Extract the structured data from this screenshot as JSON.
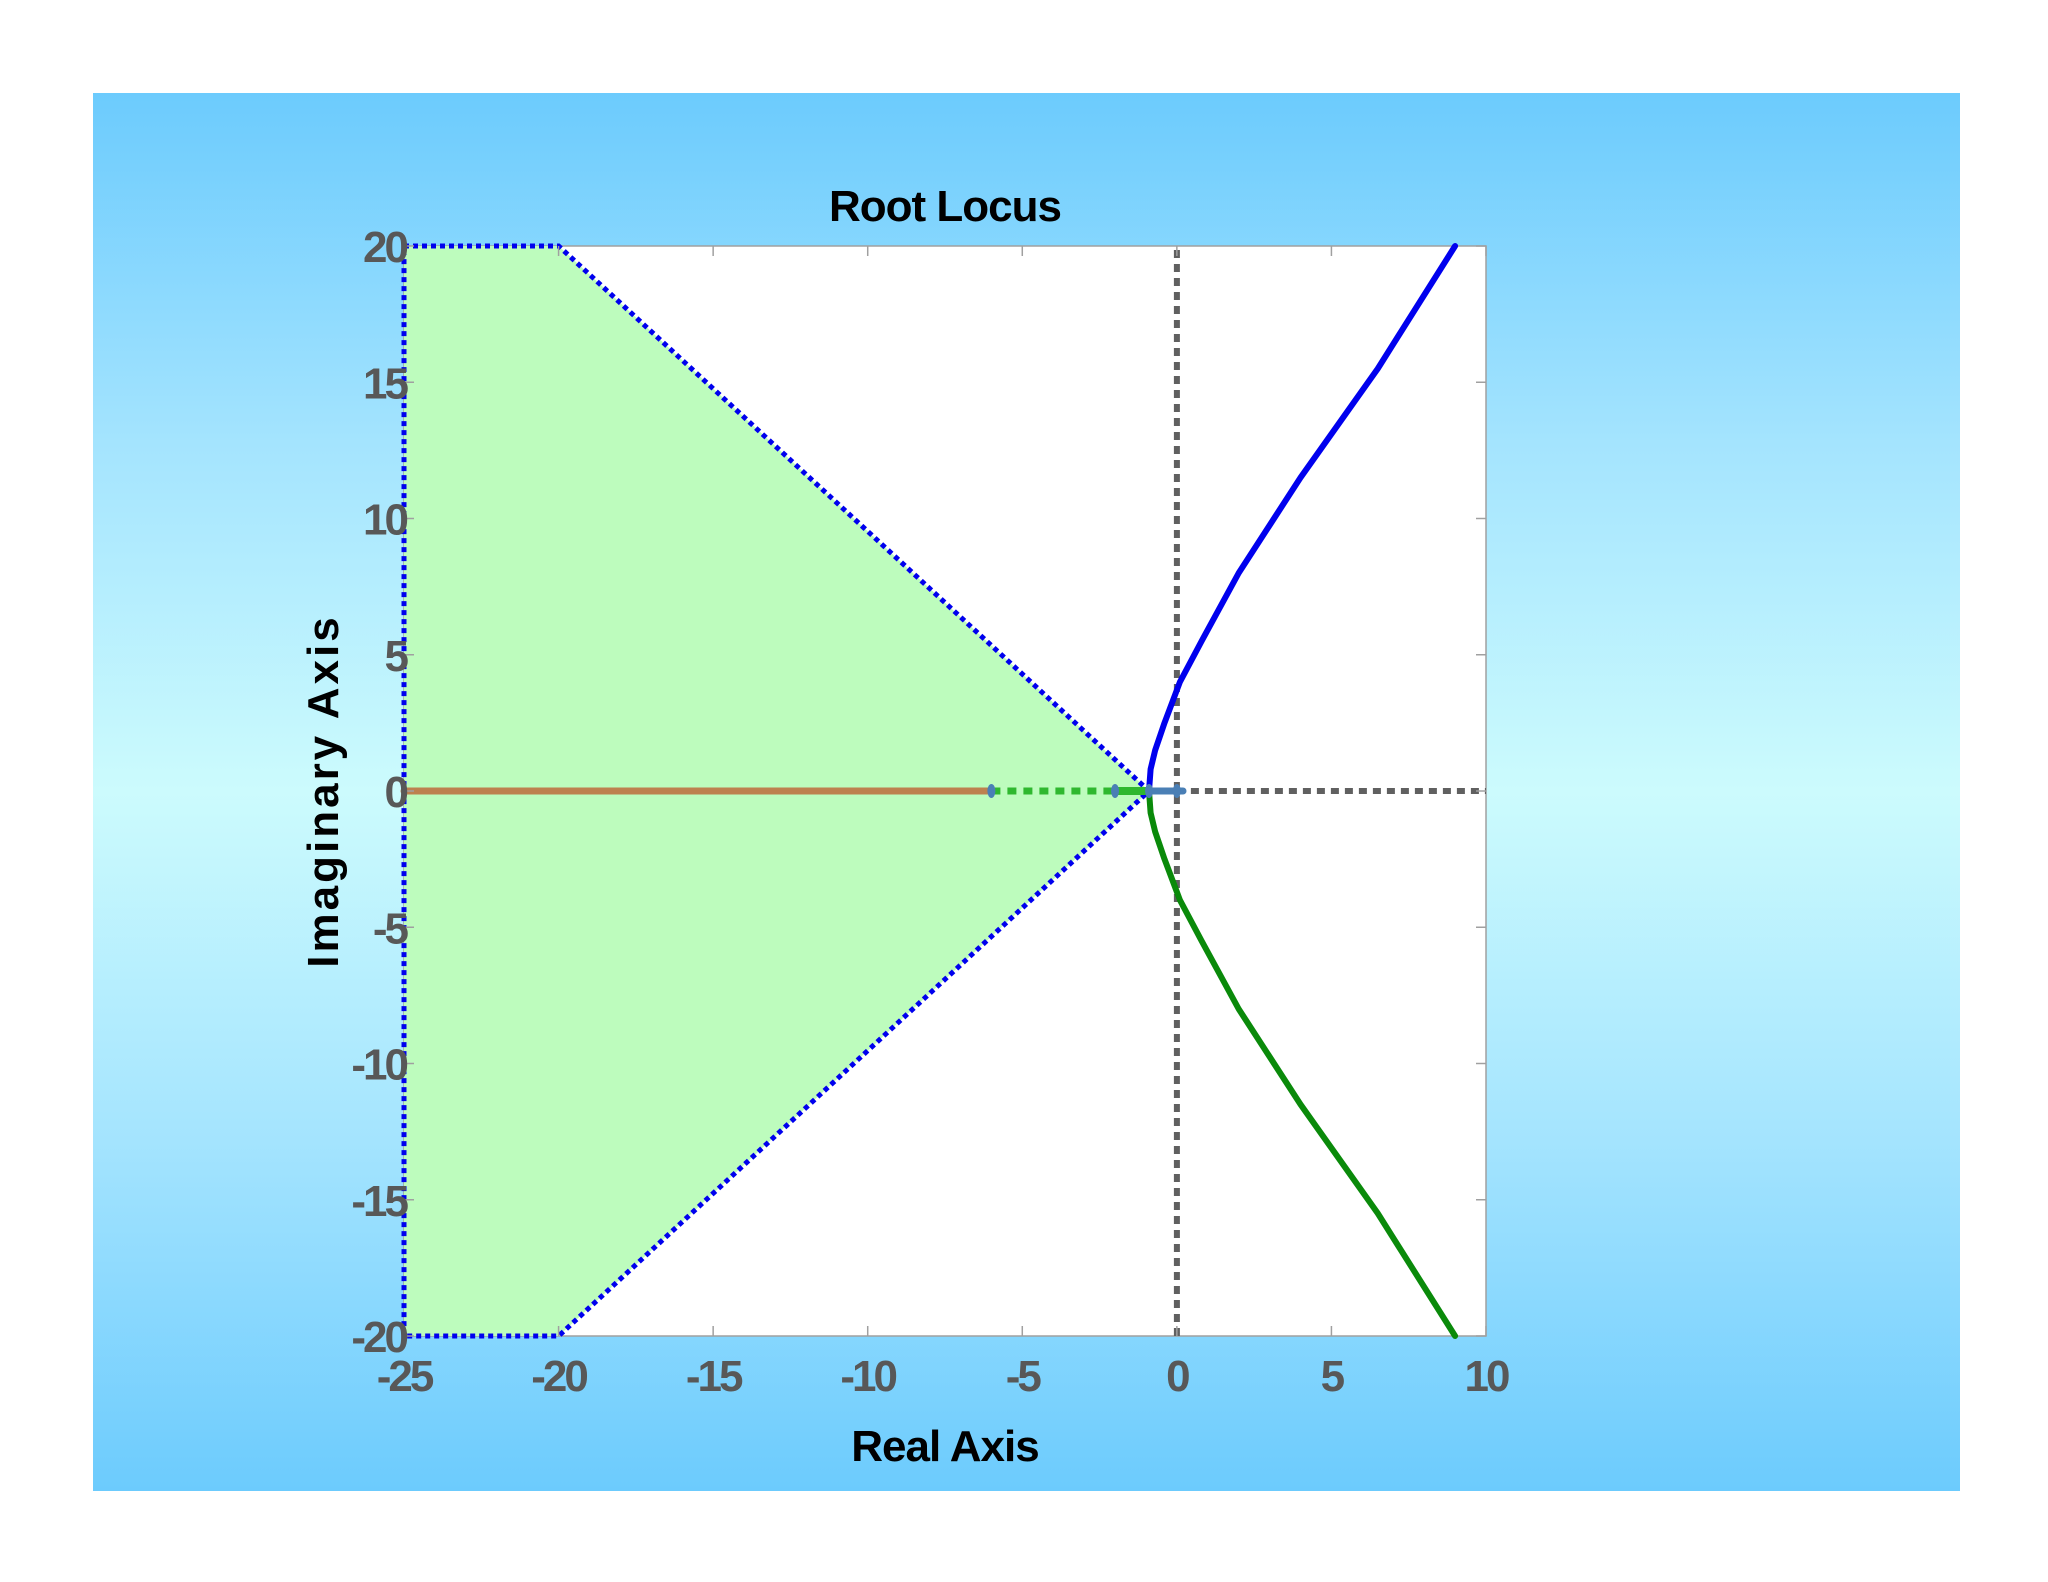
{
  "chart_data": {
    "type": "line",
    "title": "Root Locus",
    "xlabel": "Real Axis",
    "ylabel": "Imaginary Axis",
    "xlim": [
      -25,
      10
    ],
    "ylim": [
      -20,
      20
    ],
    "xticks": [
      "-25",
      "-20",
      "-15",
      "-10",
      "-5",
      "0",
      "5",
      "10"
    ],
    "yticks": [
      "20",
      "15",
      "10",
      "5",
      "0",
      "-5",
      "-10",
      "-15",
      "-20"
    ],
    "grid": false,
    "colors": {
      "panel_gradient": [
        "#6ccbfd",
        "#ccfbfd"
      ],
      "region_fill": "#bdfcbd",
      "region_border": "#0000ee",
      "reference_lines": "#606060",
      "upper_branch": "#0000ee",
      "lower_branch": "#0a8a0a",
      "real_axis_branch": "#bd814e",
      "segment_mid": "#2fb82f",
      "segment_near_origin": "#4a7fb5"
    },
    "region": {
      "name": "",
      "x": [
        -25,
        -20,
        -0.9,
        -20,
        -25
      ],
      "y": [
        20,
        20,
        0,
        -20,
        -20
      ]
    },
    "reference_lines": [
      {
        "x": [
          0,
          0
        ],
        "y": [
          -20,
          20
        ]
      },
      {
        "x": [
          0,
          10
        ],
        "y": [
          0,
          0
        ]
      }
    ],
    "series": [
      {
        "x": [
          -0.9,
          -0.85,
          -0.7,
          -0.4,
          0.1,
          0.8,
          2.0,
          4.0,
          6.5,
          9.0
        ],
        "y": [
          0,
          0.8,
          1.5,
          2.5,
          4.0,
          5.5,
          8.0,
          11.5,
          15.5,
          20.0
        ]
      },
      {
        "x": [
          -0.9,
          -0.85,
          -0.7,
          -0.4,
          0.1,
          0.8,
          2.0,
          4.0,
          6.5,
          9.0
        ],
        "y": [
          0,
          -0.8,
          -1.5,
          -2.5,
          -4.0,
          -5.5,
          -8.0,
          -11.5,
          -15.5,
          -20.0
        ]
      },
      {
        "x": [
          -25,
          -6
        ],
        "y": [
          0,
          0
        ]
      },
      {
        "x": [
          -6,
          -2
        ],
        "y": [
          0,
          0
        ],
        "dashed": true
      },
      {
        "x": [
          -2,
          -0.9
        ],
        "y": [
          0,
          0
        ]
      },
      {
        "x": [
          -0.9,
          0.2
        ],
        "y": [
          0,
          0
        ]
      }
    ],
    "markers": [
      {
        "x": -6,
        "y": 0
      },
      {
        "x": -2,
        "y": 0
      },
      {
        "x": -0.9,
        "y": 0
      },
      {
        "x": 0,
        "y": 0
      }
    ]
  }
}
